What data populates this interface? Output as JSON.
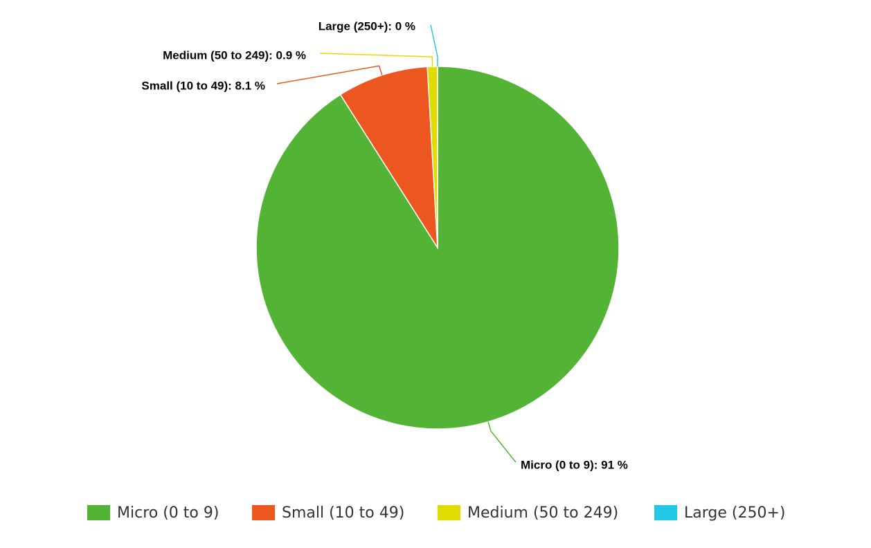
{
  "chart_data": {
    "type": "pie",
    "categories": [
      "Micro (0 to 9)",
      "Small (10 to 49)",
      "Medium (50 to 249)",
      "Large (250+)"
    ],
    "values": [
      91,
      8.1,
      0.9,
      0
    ],
    "value_labels": [
      "Micro (0 to 9): 91 %",
      "Small (10 to 49): 8.1 %",
      "Medium (50 to 249): 0.9 %",
      "Large (250+): 0 %"
    ],
    "colors": [
      "#52b335",
      "#ec561f",
      "#e0dc00",
      "#22c8e5"
    ],
    "legend": "bottom"
  }
}
